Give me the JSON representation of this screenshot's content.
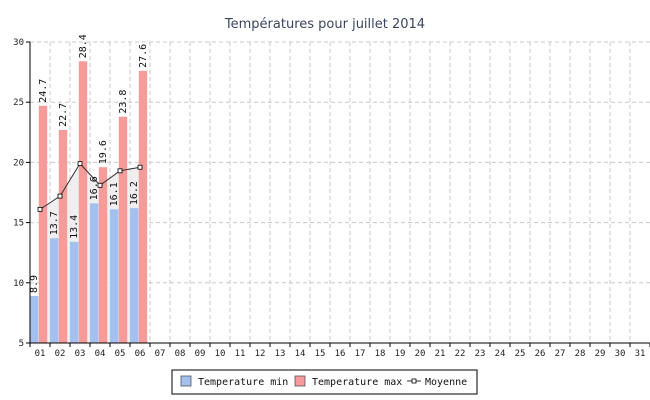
{
  "chart_data": {
    "type": "bar",
    "title": "Températures pour juillet 2014",
    "xlabel": "",
    "ylabel": "",
    "ylim": [
      5,
      30
    ],
    "yticks": [
      5,
      10,
      15,
      20,
      25,
      30
    ],
    "grid": true,
    "legend_position": "bottom-center",
    "categories": [
      "01",
      "02",
      "03",
      "04",
      "05",
      "06",
      "07",
      "08",
      "09",
      "10",
      "11",
      "12",
      "13",
      "14",
      "15",
      "16",
      "17",
      "18",
      "19",
      "20",
      "21",
      "22",
      "23",
      "24",
      "25",
      "26",
      "27",
      "28",
      "29",
      "30",
      "31"
    ],
    "series": [
      {
        "name": "Temperature min",
        "kind": "bar",
        "color": "#a4c0ef",
        "values": [
          8.9,
          13.7,
          13.4,
          16.6,
          16.1,
          16.2,
          null,
          null,
          null,
          null,
          null,
          null,
          null,
          null,
          null,
          null,
          null,
          null,
          null,
          null,
          null,
          null,
          null,
          null,
          null,
          null,
          null,
          null,
          null,
          null,
          null
        ],
        "labels": [
          "8.9",
          "13.7",
          "13.4",
          "16.6",
          "16.1",
          "16.2"
        ]
      },
      {
        "name": "Temperature max",
        "kind": "bar",
        "color": "#f79a9a",
        "values": [
          24.7,
          22.7,
          28.4,
          19.6,
          23.8,
          27.6,
          null,
          null,
          null,
          null,
          null,
          null,
          null,
          null,
          null,
          null,
          null,
          null,
          null,
          null,
          null,
          null,
          null,
          null,
          null,
          null,
          null,
          null,
          null,
          null,
          null
        ],
        "labels": [
          "24.7",
          "22.7",
          "28.4",
          "19.6",
          "23.8",
          "27.6"
        ]
      },
      {
        "name": "Moyenne",
        "kind": "line",
        "color": "#333333",
        "fill": "#ececec",
        "values": [
          16.1,
          17.2,
          19.9,
          18.1,
          19.3,
          19.6,
          null,
          null,
          null,
          null,
          null,
          null,
          null,
          null,
          null,
          null,
          null,
          null,
          null,
          null,
          null,
          null,
          null,
          null,
          null,
          null,
          null,
          null,
          null,
          null,
          null
        ]
      }
    ]
  }
}
